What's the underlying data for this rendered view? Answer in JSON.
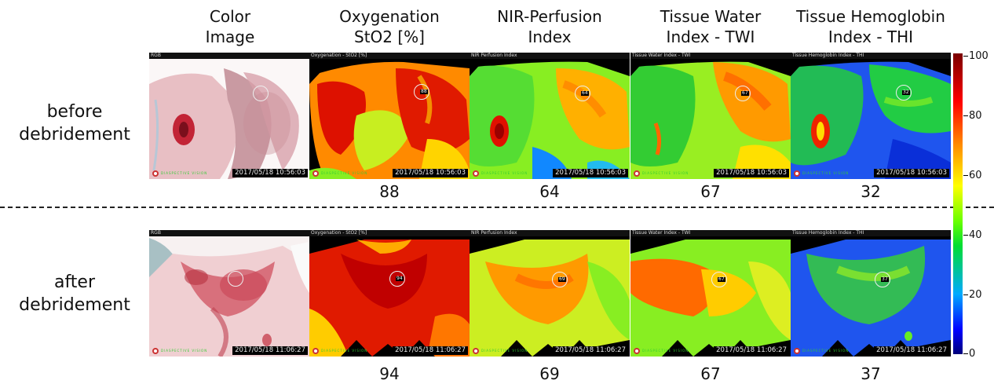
{
  "columns": [
    {
      "line1": "Color",
      "line2": "Image"
    },
    {
      "line1": "Oxygenation",
      "line2": "StO2 [%]"
    },
    {
      "line1": "NIR-Perfusion",
      "line2": "Index"
    },
    {
      "line1": "Tissue Water",
      "line2": "Index - TWI"
    },
    {
      "line1": "Tissue Hemoglobin",
      "line2": "Index - THI"
    }
  ],
  "rows": [
    {
      "label_line1": "before",
      "label_line2": "debridement",
      "timestamp": "2017/05/18 10:56:03",
      "values": [
        "88",
        "64",
        "67",
        "32"
      ]
    },
    {
      "label_line1": "after",
      "label_line2": "debridement",
      "timestamp": "2017/05/18 11:06:27",
      "values": [
        "94",
        "69",
        "67",
        "37"
      ]
    }
  ],
  "panel_titles": [
    "RGB",
    "Oxygenation - StO2 [%]",
    "NIR Perfusion Index",
    "Tissue Water Index - TWI",
    "Tissue Hemoglobin Index - THI"
  ],
  "roi_values": {
    "row0": [
      "",
      "88",
      "64",
      "67",
      "32"
    ],
    "row1": [
      "",
      "94",
      "69",
      "67",
      "37"
    ]
  },
  "logo_text": "DIASPECTIVE VISION",
  "colorbar": {
    "ticks": [
      "100",
      "80",
      "60",
      "40",
      "20",
      "0"
    ],
    "colors": [
      "#7a0000",
      "#ff0000",
      "#ff8800",
      "#ffff00",
      "#66ff00",
      "#00dd33",
      "#00aaff",
      "#0000ff",
      "#00007a"
    ]
  }
}
